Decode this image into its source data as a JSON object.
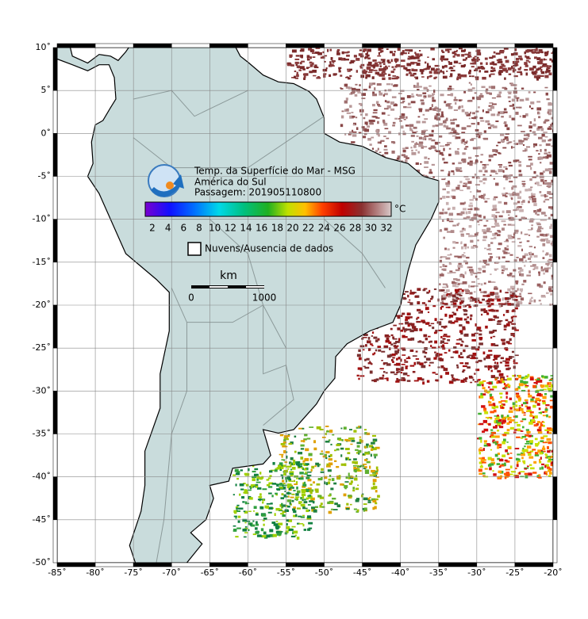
{
  "map": {
    "title_lines": [
      "Temp. da Superfície do Mar - MSG",
      "América do Sul",
      "Passagem: 201905110800"
    ],
    "colorbar": {
      "unit": "°C",
      "ticks": [
        2,
        4,
        6,
        8,
        10,
        12,
        14,
        16,
        18,
        20,
        22,
        24,
        26,
        28,
        30,
        32
      ]
    },
    "legend": "Nuvens/Ausencia de dados",
    "scale_bar": {
      "unit": "km",
      "start": "0",
      "end": "1000"
    },
    "lat_labels": [
      "10˚",
      "5˚",
      "0˚",
      "-5˚",
      "-10˚",
      "-15˚",
      "-20˚",
      "-25˚",
      "-30˚",
      "-35˚",
      "-40˚",
      "-45˚",
      "-50˚"
    ],
    "lon_labels": [
      "-85˚",
      "-80˚",
      "-75˚",
      "-70˚",
      "-65˚",
      "-60˚",
      "-55˚",
      "-50˚",
      "-45˚",
      "-40˚",
      "-35˚",
      "-30˚",
      "-25˚",
      "-20˚"
    ]
  }
}
